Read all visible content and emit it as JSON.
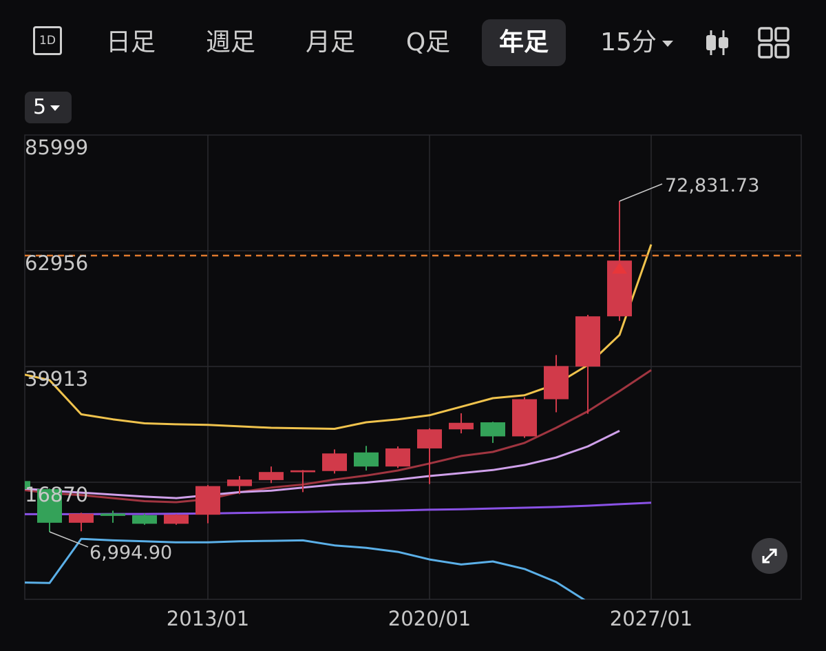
{
  "toolbar": {
    "icon_1d_label": "1D",
    "tabs": [
      "日足",
      "週足",
      "月足",
      "Q足",
      "年足"
    ],
    "active_tab": "年足",
    "interval": "15分"
  },
  "selector": {
    "value": "5"
  },
  "chart_data": {
    "type": "candlestick",
    "x_tick_labels": [
      "2013/01",
      "2020/01",
      "2027/01"
    ],
    "y_tick_labels": [
      "85999",
      "62956",
      "39913",
      "16870"
    ],
    "ylim": [
      -6000,
      86000
    ],
    "year_range": [
      2007,
      2031
    ],
    "grid": true,
    "reference_line": {
      "value": 62000,
      "color": "#e07a2e",
      "style": "dashed"
    },
    "annotations": {
      "max": {
        "label": "72,831.73",
        "value": 72831.73,
        "year": 2026
      },
      "min": {
        "label": "6,994.90",
        "value": 6994.9,
        "year": 2008
      }
    },
    "candles": [
      {
        "year": 2007,
        "open": 17100,
        "high": 18200,
        "low": 15800,
        "close": 15500
      },
      {
        "year": 2008,
        "open": 15500,
        "high": 15600,
        "low": 6994.9,
        "close": 8800
      },
      {
        "year": 2009,
        "open": 8800,
        "high": 10800,
        "low": 7100,
        "close": 10600
      },
      {
        "year": 2010,
        "open": 10500,
        "high": 11200,
        "low": 8800,
        "close": 10300
      },
      {
        "year": 2011,
        "open": 10300,
        "high": 10600,
        "low": 8400,
        "close": 8600
      },
      {
        "year": 2012,
        "open": 8600,
        "high": 10500,
        "low": 8400,
        "close": 10400
      },
      {
        "year": 2013,
        "open": 10400,
        "high": 16300,
        "low": 8700,
        "close": 16100
      },
      {
        "year": 2014,
        "open": 16100,
        "high": 18100,
        "low": 14500,
        "close": 17400
      },
      {
        "year": 2015,
        "open": 17300,
        "high": 20000,
        "low": 16700,
        "close": 18900
      },
      {
        "year": 2016,
        "open": 19000,
        "high": 19300,
        "low": 14900,
        "close": 19100
      },
      {
        "year": 2017,
        "open": 19100,
        "high": 23400,
        "low": 18600,
        "close": 22600
      },
      {
        "year": 2018,
        "open": 22800,
        "high": 24100,
        "low": 19200,
        "close": 20000
      },
      {
        "year": 2019,
        "open": 20000,
        "high": 24000,
        "low": 19700,
        "close": 23600
      },
      {
        "year": 2020,
        "open": 23600,
        "high": 27600,
        "low": 16500,
        "close": 27400
      },
      {
        "year": 2021,
        "open": 27400,
        "high": 30600,
        "low": 26600,
        "close": 28700
      },
      {
        "year": 2022,
        "open": 28800,
        "high": 28900,
        "low": 24700,
        "close": 26000
      },
      {
        "year": 2023,
        "open": 26000,
        "high": 33800,
        "low": 25700,
        "close": 33400
      },
      {
        "year": 2024,
        "open": 33400,
        "high": 42200,
        "low": 30800,
        "close": 40000
      },
      {
        "year": 2025,
        "open": 39900,
        "high": 50200,
        "low": 30500,
        "close": 49900
      },
      {
        "year": 2026,
        "open": 49900,
        "high": 72831.73,
        "low": 49000,
        "close": 61000
      }
    ],
    "series": [
      {
        "color": "#f0c34d",
        "values": [
          [
            2007,
            38300
          ],
          [
            2008,
            37200
          ],
          [
            2009,
            30400
          ],
          [
            2010,
            29400
          ],
          [
            2011,
            28600
          ],
          [
            2012,
            28400
          ],
          [
            2013,
            28300
          ],
          [
            2014,
            28000
          ],
          [
            2015,
            27700
          ],
          [
            2016,
            27600
          ],
          [
            2017,
            27500
          ],
          [
            2018,
            28800
          ],
          [
            2019,
            29400
          ],
          [
            2020,
            30200
          ],
          [
            2021,
            31900
          ],
          [
            2022,
            33600
          ],
          [
            2023,
            34200
          ],
          [
            2024,
            36400
          ],
          [
            2025,
            40200
          ],
          [
            2026,
            46200
          ],
          [
            2027,
            64200
          ]
        ]
      },
      {
        "color": "#a03540",
        "values": [
          [
            2007,
            15300
          ],
          [
            2008,
            14700
          ],
          [
            2009,
            14300
          ],
          [
            2010,
            13700
          ],
          [
            2011,
            13100
          ],
          [
            2012,
            12900
          ],
          [
            2013,
            13500
          ],
          [
            2014,
            14900
          ],
          [
            2015,
            15800
          ],
          [
            2016,
            16400
          ],
          [
            2017,
            17400
          ],
          [
            2018,
            18200
          ],
          [
            2019,
            19200
          ],
          [
            2020,
            20600
          ],
          [
            2021,
            22100
          ],
          [
            2022,
            22900
          ],
          [
            2023,
            24700
          ],
          [
            2024,
            27700
          ],
          [
            2025,
            31000
          ],
          [
            2026,
            35000
          ],
          [
            2027,
            39200
          ]
        ]
      },
      {
        "color": "#cfa0ea",
        "values": [
          [
            2007,
            15600
          ],
          [
            2008,
            15200
          ],
          [
            2009,
            14800
          ],
          [
            2010,
            14400
          ],
          [
            2011,
            14000
          ],
          [
            2012,
            13700
          ],
          [
            2013,
            14300
          ],
          [
            2014,
            14900
          ],
          [
            2015,
            15200
          ],
          [
            2016,
            15800
          ],
          [
            2017,
            16400
          ],
          [
            2018,
            16800
          ],
          [
            2019,
            17400
          ],
          [
            2020,
            18100
          ],
          [
            2021,
            18700
          ],
          [
            2022,
            19300
          ],
          [
            2023,
            20300
          ],
          [
            2024,
            21800
          ],
          [
            2025,
            24000
          ],
          [
            2026,
            27100
          ]
        ]
      },
      {
        "color": "#8a52e6",
        "values": [
          [
            2007,
            10500
          ],
          [
            2008,
            10500
          ],
          [
            2009,
            10500
          ],
          [
            2010,
            10550
          ],
          [
            2011,
            10550
          ],
          [
            2012,
            10600
          ],
          [
            2013,
            10650
          ],
          [
            2014,
            10750
          ],
          [
            2015,
            10850
          ],
          [
            2016,
            10950
          ],
          [
            2017,
            11050
          ],
          [
            2018,
            11150
          ],
          [
            2019,
            11250
          ],
          [
            2020,
            11400
          ],
          [
            2021,
            11500
          ],
          [
            2022,
            11650
          ],
          [
            2023,
            11800
          ],
          [
            2024,
            11950
          ],
          [
            2025,
            12200
          ],
          [
            2026,
            12500
          ],
          [
            2027,
            12800
          ]
        ]
      },
      {
        "color": "#5bb0e8",
        "values": [
          [
            2007,
            -3100
          ],
          [
            2008,
            -3200
          ],
          [
            2009,
            5600
          ],
          [
            2010,
            5300
          ],
          [
            2011,
            5100
          ],
          [
            2012,
            4900
          ],
          [
            2013,
            4900
          ],
          [
            2014,
            5100
          ],
          [
            2015,
            5200
          ],
          [
            2016,
            5300
          ],
          [
            2017,
            4300
          ],
          [
            2018,
            3800
          ],
          [
            2019,
            3000
          ],
          [
            2020,
            1500
          ],
          [
            2021,
            500
          ],
          [
            2022,
            1100
          ],
          [
            2023,
            -400
          ],
          [
            2024,
            -3000
          ],
          [
            2025,
            -7000
          ]
        ]
      }
    ]
  },
  "icons": {
    "candle_icon": "candlestick-icon",
    "layout_icon": "grid-layout-icon",
    "expand_icon": "expand-icon"
  }
}
